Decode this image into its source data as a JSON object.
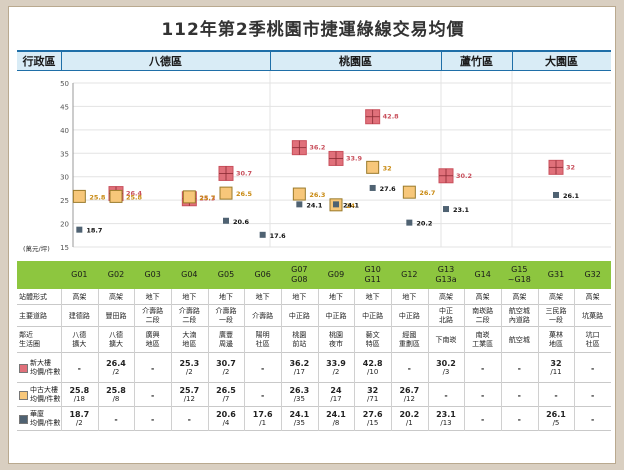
{
  "title": "112年第2季桃園市捷運綠線交易均價",
  "districts_header": {
    "label": "行政區",
    "items": [
      "八德區",
      "桃園區",
      "蘆竹區",
      "大園區"
    ]
  },
  "chart_data": {
    "type": "scatter",
    "ylabel": "(萬元/坪)",
    "ylim": [
      15,
      50
    ],
    "yticks": [
      15,
      20,
      25,
      30,
      35,
      40,
      45,
      50
    ],
    "categories": [
      "G01",
      "G02",
      "G03",
      "G04",
      "G05",
      "G06",
      "G07\nG08",
      "G09",
      "G10\nG11",
      "G12",
      "G13\nG13a",
      "G14",
      "G15\n~G18",
      "G31",
      "G32"
    ],
    "series": [
      {
        "name": "新大樓",
        "color": "#e0707a",
        "values": [
          null,
          26.4,
          null,
          25.3,
          30.7,
          null,
          36.2,
          33.9,
          42.8,
          null,
          30.2,
          null,
          null,
          32,
          null
        ]
      },
      {
        "name": "中古大樓",
        "color": "#f7c77a",
        "values": [
          25.8,
          25.8,
          null,
          25.7,
          26.5,
          null,
          26.3,
          24,
          32,
          26.7,
          null,
          null,
          null,
          null,
          null
        ]
      },
      {
        "name": "華廈",
        "color": "#4f6272",
        "values": [
          18.7,
          null,
          null,
          null,
          20.6,
          17.6,
          24.1,
          24.1,
          27.6,
          20.2,
          23.1,
          null,
          null,
          26.1,
          null
        ]
      }
    ],
    "labels": [
      [
        null,
        "26.4",
        null,
        "25.3",
        "30.7",
        null,
        "36.2",
        "33.9",
        "42.8",
        null,
        "30.2",
        null,
        null,
        "32",
        null
      ],
      [
        "25.8",
        "25.8",
        null,
        "25.7",
        "26.5",
        null,
        "26.3",
        "24",
        "32",
        "26.7",
        null,
        null,
        null,
        null,
        null
      ],
      [
        "18.7",
        null,
        null,
        null,
        "20.6",
        "17.6",
        "24.1",
        "24.1",
        "27.6",
        "20.2",
        "23.1",
        null,
        null,
        "26.1",
        null
      ]
    ]
  },
  "stations": [
    "G01",
    "G02",
    "G03",
    "G04",
    "G05",
    "G06",
    "G07\nG08",
    "G09",
    "G10\nG11",
    "G12",
    "G13\nG13a",
    "G14",
    "G15\n~G18",
    "G31",
    "G32"
  ],
  "table": {
    "row_labels": {
      "type": "站體形式",
      "road": "主要道路",
      "area": "鄰近\n生活圈",
      "new": "新大樓\n均價/件數",
      "used": "中古大樓\n均價/件數",
      "mansion": "華廈\n均價/件數"
    },
    "type": [
      "高架",
      "高架",
      "地下",
      "地下",
      "地下",
      "地下",
      "地下",
      "地下",
      "地下",
      "地下",
      "高架",
      "高架",
      "高架",
      "高架",
      "高架"
    ],
    "road": [
      "建德路",
      "豐田路",
      "介壽路\n二段",
      "介壽路\n二段",
      "介壽路\n一段",
      "介壽路",
      "中正路",
      "中正路",
      "中正路",
      "中正路",
      "中正\n北路",
      "南崁路\n二段",
      "航空城\n內道路",
      "三民路\n一段",
      "坑菓路"
    ],
    "area": [
      "八德\n擴大",
      "八德\n擴大",
      "廣興\n地區",
      "大湳\n地區",
      "廣豐\n周邊",
      "陽明\n社區",
      "桃園\n前站",
      "桃園\n夜市",
      "藝文\n特區",
      "經國\n重劃區",
      "下南崁",
      "南崁\n工業區",
      "航空城",
      "菓林\n地區",
      "坑口\n社區"
    ],
    "new": [
      [
        "-",
        ""
      ],
      [
        "26.4",
        "/2"
      ],
      [
        "-",
        ""
      ],
      [
        "25.3",
        "/2"
      ],
      [
        "30.7",
        "/2"
      ],
      [
        "-",
        ""
      ],
      [
        "36.2",
        "/17"
      ],
      [
        "33.9",
        "/2"
      ],
      [
        "42.8",
        "/10"
      ],
      [
        "-",
        ""
      ],
      [
        "30.2",
        "/3"
      ],
      [
        "-",
        ""
      ],
      [
        "-",
        ""
      ],
      [
        "32",
        "/11"
      ],
      [
        "-",
        ""
      ]
    ],
    "used": [
      [
        "25.8",
        "/18"
      ],
      [
        "25.8",
        "/8"
      ],
      [
        "-",
        ""
      ],
      [
        "25.7",
        "/12"
      ],
      [
        "26.5",
        "/7"
      ],
      [
        "-",
        ""
      ],
      [
        "26.3",
        "/35"
      ],
      [
        "24",
        "/17"
      ],
      [
        "32",
        "/71"
      ],
      [
        "26.7",
        "/12"
      ],
      [
        "-",
        ""
      ],
      [
        "-",
        ""
      ],
      [
        "-",
        ""
      ],
      [
        "-",
        ""
      ],
      [
        "-",
        ""
      ]
    ],
    "mansion": [
      [
        "18.7",
        "/2"
      ],
      [
        "-",
        ""
      ],
      [
        "-",
        ""
      ],
      [
        "-",
        ""
      ],
      [
        "20.6",
        "/4"
      ],
      [
        "17.6",
        "/1"
      ],
      [
        "24.1",
        "/35"
      ],
      [
        "24.1",
        "/8"
      ],
      [
        "27.6",
        "/15"
      ],
      [
        "20.2",
        "/1"
      ],
      [
        "23.1",
        "/13"
      ],
      [
        "-",
        ""
      ],
      [
        "-",
        ""
      ],
      [
        "26.1",
        "/5"
      ],
      [
        "-",
        ""
      ]
    ]
  }
}
